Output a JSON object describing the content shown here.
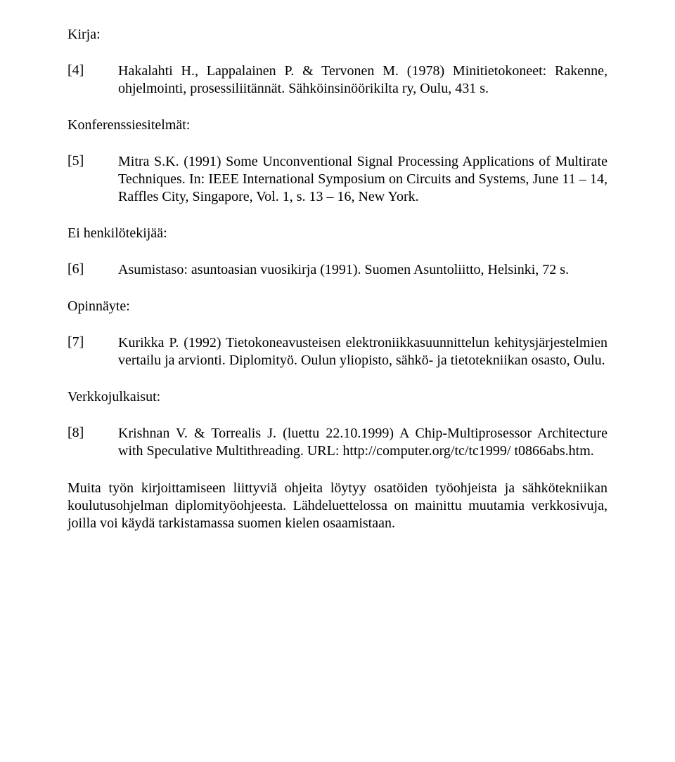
{
  "sections": {
    "kirja": {
      "heading": "Kirja:",
      "entries": [
        {
          "num": "[4]",
          "text": "Hakalahti H., Lappalainen P. & Tervonen M. (1978) Minitietokoneet: Rakenne, ohjelmointi, prosessiliitännät. Sähköinsinöörikilta ry, Oulu, 431 s."
        }
      ]
    },
    "konferenssiesitelmat": {
      "heading": "Konferenssiesitelmät:",
      "entries": [
        {
          "num": "[5]",
          "text": "Mitra S.K. (1991) Some Unconventional Signal Processing Applications of Multirate Techniques. In: IEEE International Symposium on Circuits and Systems, June 11 – 14, Raffles City, Singapore, Vol. 1, s. 13 – 16, New York."
        }
      ]
    },
    "eihenkilotekijaa": {
      "heading": "Ei henkilötekijää:",
      "entries": [
        {
          "num": "[6]",
          "text": "Asumistaso: asuntoasian vuosikirja (1991). Suomen Asuntoliitto, Helsinki, 72 s."
        }
      ]
    },
    "opinnayte": {
      "heading": "Opinnäyte:",
      "entries": [
        {
          "num": "[7]",
          "text": "Kurikka P. (1992) Tietokoneavusteisen elektroniikkasuunnittelun kehitysjärjestelmien vertailu ja arvionti. Diplomityö. Oulun yliopisto, sähkö- ja tietotekniikan osasto, Oulu."
        }
      ]
    },
    "verkkojulkaisut": {
      "heading": "Verkkojulkaisut:",
      "entries": [
        {
          "num": "[8]",
          "text": "Krishnan V. & Torrealis J. (luettu 22.10.1999) A Chip-Multiprosessor Architecture with Speculative Multithreading. URL: http://computer.org/tc/tc1999/ t0866abs.htm."
        }
      ]
    }
  },
  "closing_para": "Muita työn kirjoittamiseen liittyviä ohjeita löytyy osatöiden työohjeista ja sähkötekniikan koulutusohjelman diplomityöohjeesta. Lähdeluettelossa on mainittu muutamia verkkosivuja, joilla voi käydä tarkistamassa suomen kielen osaamistaan.",
  "colors": {
    "text": "#000000",
    "background": "#ffffff"
  },
  "typography": {
    "font_family": "Times New Roman",
    "base_fontsize_pt": 15
  }
}
